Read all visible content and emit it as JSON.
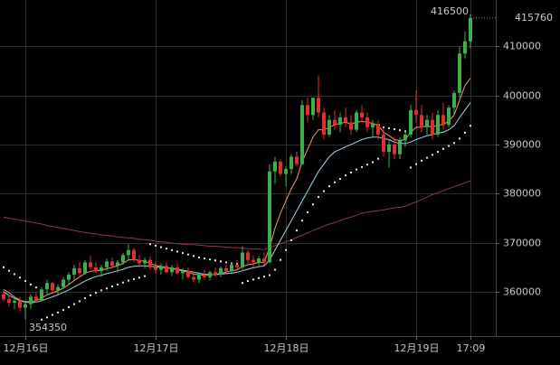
{
  "chart_data": {
    "type": "candlestick",
    "categories": [
      null,
      null,
      null,
      null,
      "12月16日",
      null,
      null,
      null,
      null,
      null,
      null,
      null,
      null,
      null,
      null,
      null,
      null,
      null,
      null,
      null,
      null,
      null,
      null,
      null,
      null,
      null,
      null,
      null,
      "12月17日",
      null,
      null,
      null,
      null,
      null,
      null,
      null,
      null,
      null,
      null,
      null,
      null,
      null,
      null,
      null,
      null,
      null,
      null,
      null,
      null,
      null,
      null,
      null,
      "12月18日",
      null,
      null,
      null,
      null,
      null,
      null,
      null,
      null,
      null,
      null,
      null,
      null,
      null,
      null,
      null,
      null,
      null,
      null,
      null,
      null,
      null,
      null,
      null,
      "12月19日",
      null,
      null,
      null,
      null,
      null,
      null,
      null,
      null,
      null,
      "17:09"
    ],
    "open": [
      359500,
      358500,
      357800,
      358200,
      356800,
      357500,
      359000,
      358300,
      360500,
      361800,
      360300,
      361000,
      362500,
      363500,
      364800,
      363800,
      366000,
      365000,
      364200,
      365000,
      366200,
      365300,
      366000,
      367500,
      368500,
      366500,
      365800,
      366500,
      365000,
      364500,
      365300,
      364000,
      365000,
      363800,
      364200,
      363000,
      362500,
      363500,
      363000,
      364000,
      363500,
      364800,
      364200,
      365500,
      365000,
      368000,
      366500,
      366000,
      366800,
      366000,
      384500,
      386500,
      384000,
      385000,
      387500,
      386000,
      398000,
      396000,
      399500,
      396500,
      392000,
      395000,
      394000,
      395500,
      394500,
      393000,
      396500,
      395500,
      393500,
      394200,
      392000,
      388500,
      390000,
      388000,
      390800,
      392000,
      397000,
      396000,
      393500,
      395000,
      392000,
      396000,
      394000,
      397500,
      400500,
      408500,
      411000
    ],
    "high": [
      360500,
      359500,
      358800,
      359000,
      358000,
      359500,
      360000,
      361000,
      362500,
      362000,
      361500,
      363000,
      364000,
      365500,
      366000,
      366500,
      367300,
      366000,
      365500,
      366800,
      367000,
      366500,
      368000,
      369700,
      369000,
      367500,
      367000,
      367200,
      366200,
      365800,
      366000,
      365500,
      365800,
      364800,
      365000,
      364200,
      364000,
      364500,
      364300,
      365000,
      365200,
      365500,
      366000,
      366500,
      369300,
      368500,
      367500,
      367300,
      368000,
      386000,
      387500,
      387000,
      385500,
      388000,
      388500,
      399000,
      399500,
      399500,
      404000,
      397500,
      396000,
      397000,
      396500,
      397500,
      396000,
      397000,
      398000,
      396500,
      395000,
      395000,
      393500,
      391000,
      391500,
      391500,
      393000,
      398000,
      401000,
      398000,
      396000,
      396500,
      397000,
      398500,
      398000,
      401000,
      410000,
      413000,
      416500
    ],
    "low": [
      358000,
      357000,
      356500,
      356000,
      354350,
      356500,
      357800,
      358000,
      359500,
      359800,
      359500,
      360500,
      361500,
      362500,
      363000,
      363500,
      364500,
      363800,
      363000,
      364200,
      364800,
      364000,
      365500,
      366500,
      366000,
      365000,
      364800,
      364500,
      363800,
      363500,
      363800,
      363200,
      363500,
      362500,
      362800,
      362000,
      361800,
      362500,
      362300,
      363000,
      363000,
      363800,
      363800,
      364500,
      364500,
      365500,
      365000,
      365000,
      365500,
      365800,
      382000,
      383500,
      381500,
      384000,
      385500,
      385800,
      394500,
      395000,
      395500,
      391000,
      391500,
      393000,
      392500,
      393500,
      392000,
      392500,
      394500,
      392500,
      391500,
      391000,
      387500,
      385300,
      387000,
      387000,
      389500,
      391500,
      394500,
      392500,
      392000,
      391000,
      391500,
      393000,
      393500,
      396000,
      399500,
      407500,
      409500
    ],
    "close": [
      358500,
      357800,
      358200,
      356800,
      357500,
      359000,
      358300,
      360500,
      361800,
      360300,
      361000,
      362500,
      363500,
      364800,
      363800,
      366000,
      365000,
      364200,
      365000,
      366200,
      365300,
      366000,
      367500,
      368500,
      366500,
      365800,
      366500,
      365000,
      364500,
      365300,
      364000,
      365000,
      363800,
      364200,
      363000,
      362500,
      363500,
      363000,
      364000,
      363500,
      364800,
      364200,
      365500,
      365000,
      368000,
      366500,
      366000,
      366800,
      366000,
      384500,
      386500,
      384000,
      385000,
      387500,
      386000,
      398000,
      396000,
      399500,
      396500,
      392000,
      395000,
      394000,
      395500,
      394500,
      393000,
      396500,
      395500,
      393500,
      394200,
      392000,
      388500,
      390000,
      388000,
      390800,
      392000,
      397000,
      396000,
      393500,
      395000,
      392000,
      396000,
      394000,
      397500,
      400500,
      408500,
      411000,
      415760
    ],
    "up_color": "#3fae49",
    "down_color": "#e0302c",
    "series": [
      {
        "color": "#8a3b4c",
        "style": "line",
        "values": [
          375200,
          375000,
          374800,
          374600,
          374400,
          374200,
          374000,
          373800,
          373500,
          373300,
          373100,
          372900,
          372700,
          372500,
          372300,
          372100,
          371900,
          371800,
          371600,
          371500,
          371400,
          371200,
          371100,
          371000,
          370900,
          370700,
          370600,
          370500,
          370300,
          370200,
          370100,
          369900,
          369800,
          369700,
          369600,
          369600,
          369500,
          369400,
          369300,
          369300,
          369200,
          369100,
          369000,
          369000,
          368900,
          368800,
          368700,
          368700,
          368600,
          369000,
          369400,
          369800,
          370200,
          370600,
          371100,
          371500,
          372000,
          372500,
          372900,
          373400,
          373800,
          374100,
          374500,
          374900,
          375200,
          375600,
          376000,
          376200,
          376400,
          376500,
          376700,
          376900,
          377100,
          377200,
          377400,
          377900,
          378300,
          378800,
          379300,
          379800,
          380200,
          380600,
          381000,
          381400,
          381800,
          382200,
          382600
        ]
      },
      {
        "color": "#9fd6ea",
        "style": "line",
        "values": [
          360000,
          359300,
          358700,
          358200,
          357900,
          357800,
          357900,
          358200,
          358600,
          359000,
          359400,
          359900,
          360400,
          361000,
          361600,
          362200,
          362700,
          363100,
          363400,
          363700,
          364000,
          364300,
          364600,
          365000,
          365200,
          365300,
          365300,
          365200,
          365100,
          365000,
          364900,
          364800,
          364600,
          364400,
          364200,
          364000,
          363800,
          363600,
          363500,
          363500,
          363600,
          363700,
          363800,
          364000,
          364300,
          364600,
          364900,
          365100,
          365300,
          366500,
          368500,
          370500,
          372500,
          374500,
          376500,
          378500,
          380500,
          382500,
          384500,
          386000,
          387500,
          388500,
          389000,
          389500,
          390000,
          390500,
          391000,
          391300,
          391500,
          391500,
          391200,
          391000,
          390500,
          390200,
          390200,
          390500,
          391000,
          391400,
          391800,
          392000,
          392300,
          392500,
          393000,
          393800,
          395500,
          397000,
          398500
        ]
      },
      {
        "color": "#f0a066",
        "style": "line",
        "values": [
          360500,
          359800,
          359000,
          358300,
          358000,
          358000,
          358200,
          358700,
          359400,
          359800,
          360200,
          360800,
          361500,
          362300,
          363000,
          363800,
          364200,
          364300,
          364400,
          364700,
          365000,
          365300,
          365800,
          366500,
          366600,
          366400,
          366200,
          365800,
          365400,
          365200,
          364900,
          364800,
          364500,
          364300,
          364000,
          363600,
          363500,
          363400,
          363500,
          363500,
          363800,
          364000,
          364300,
          364500,
          365200,
          365500,
          365700,
          366000,
          366000,
          369000,
          373000,
          376000,
          378500,
          381000,
          383000,
          386500,
          389000,
          391500,
          393000,
          393000,
          393500,
          394000,
          394300,
          394500,
          394200,
          394500,
          394700,
          394500,
          394300,
          393800,
          392500,
          391800,
          391000,
          390800,
          391000,
          392500,
          393500,
          393500,
          393800,
          393500,
          394000,
          394000,
          394800,
          396000,
          399000,
          402000,
          403500
        ]
      },
      {
        "color": "#e6e6e6",
        "style": "dots",
        "values": [
          365000,
          364300,
          363600,
          362900,
          362200,
          361500,
          360900,
          354350,
          354800,
          355300,
          355800,
          356300,
          356900,
          357500,
          358100,
          358700,
          359300,
          359800,
          360300,
          360700,
          361100,
          361500,
          361900,
          362300,
          362600,
          362900,
          363200,
          369700,
          369400,
          369100,
          368800,
          368500,
          368200,
          367900,
          367600,
          367300,
          367000,
          366800,
          366600,
          366400,
          366200,
          366000,
          365800,
          365700,
          361800,
          362200,
          362500,
          362800,
          363100,
          363400,
          364500,
          366500,
          368500,
          370500,
          372500,
          374500,
          376200,
          377800,
          379300,
          380500,
          381500,
          382300,
          383000,
          383700,
          384300,
          384900,
          385400,
          385900,
          386400,
          387100,
          393500,
          393300,
          393100,
          392900,
          392700,
          385300,
          386000,
          386700,
          387300,
          387900,
          388500,
          389100,
          389700,
          390300,
          391200,
          392400,
          393800
        ]
      }
    ],
    "ylim": [
      351000,
      419400
    ],
    "yticks": [
      360000,
      370000,
      380000,
      390000,
      400000,
      410000
    ]
  }
}
